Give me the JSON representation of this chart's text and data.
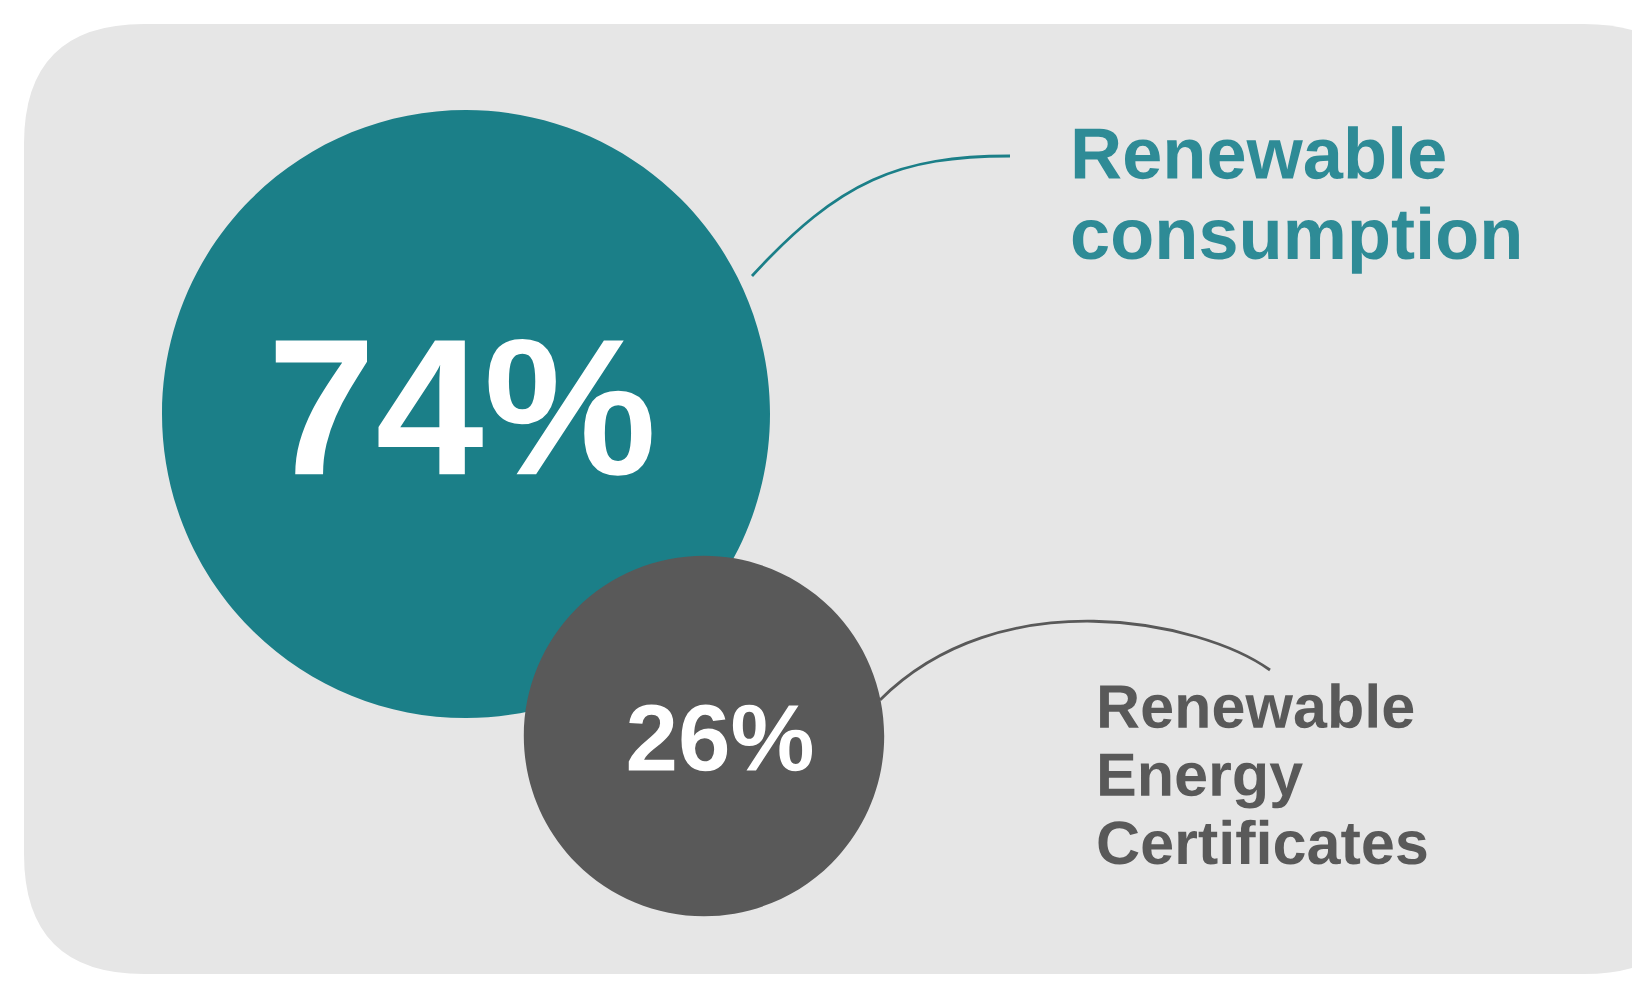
{
  "chart_data": {
    "type": "other",
    "categories": [
      "Renewable consumption",
      "Renewable Energy Certificates"
    ],
    "values": [
      74,
      26
    ],
    "value_labels": [
      "74%",
      "26%"
    ],
    "colors": [
      "#1b7f88",
      "#595959"
    ]
  }
}
